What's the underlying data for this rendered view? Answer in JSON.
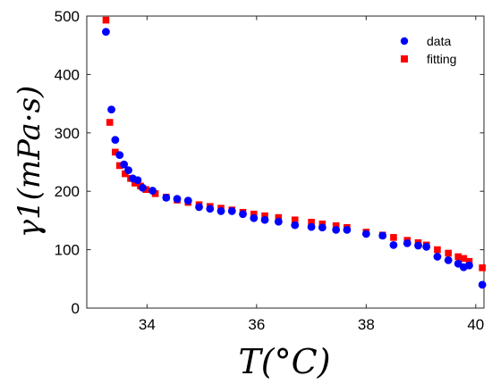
{
  "chart_data": {
    "type": "scatter",
    "xlabel": "T(°C)",
    "ylabel": "γ1(mPa·s)",
    "xlim": [
      32.9,
      40.15
    ],
    "ylim": [
      0,
      500
    ],
    "grid": false,
    "legend_position": "top-right",
    "x_ticks": [
      34,
      36,
      38,
      40
    ],
    "y_ticks": [
      0,
      100,
      200,
      300,
      400,
      500
    ],
    "series": [
      {
        "name": "data",
        "marker": "circle",
        "color": "#0000ff",
        "points": [
          [
            33.25,
            473
          ],
          [
            33.35,
            340
          ],
          [
            33.42,
            288
          ],
          [
            33.5,
            262
          ],
          [
            33.58,
            246
          ],
          [
            33.66,
            236
          ],
          [
            33.74,
            222
          ],
          [
            33.83,
            219
          ],
          [
            33.92,
            206
          ],
          [
            34.1,
            201
          ],
          [
            34.35,
            189
          ],
          [
            34.55,
            187
          ],
          [
            34.75,
            184
          ],
          [
            34.95,
            173
          ],
          [
            35.15,
            170
          ],
          [
            35.35,
            166
          ],
          [
            35.55,
            166
          ],
          [
            35.75,
            161
          ],
          [
            35.95,
            154
          ],
          [
            36.15,
            151
          ],
          [
            36.4,
            148
          ],
          [
            36.7,
            142
          ],
          [
            37.0,
            139
          ],
          [
            37.2,
            138
          ],
          [
            37.45,
            134
          ],
          [
            37.65,
            134
          ],
          [
            38.0,
            127
          ],
          [
            38.3,
            124
          ],
          [
            38.5,
            108
          ],
          [
            38.75,
            111
          ],
          [
            38.95,
            107
          ],
          [
            39.1,
            105
          ],
          [
            39.3,
            88
          ],
          [
            39.5,
            82
          ],
          [
            39.68,
            76
          ],
          [
            39.78,
            70
          ],
          [
            39.88,
            73
          ],
          [
            40.12,
            40
          ]
        ]
      },
      {
        "name": "fitting",
        "marker": "square",
        "color": "#ff0000",
        "points": [
          [
            33.25,
            493
          ],
          [
            33.32,
            318
          ],
          [
            33.42,
            267
          ],
          [
            33.5,
            244
          ],
          [
            33.6,
            230
          ],
          [
            33.7,
            222
          ],
          [
            33.78,
            214
          ],
          [
            33.88,
            209
          ],
          [
            33.98,
            203
          ],
          [
            34.15,
            196
          ],
          [
            34.35,
            190
          ],
          [
            34.55,
            185
          ],
          [
            34.75,
            181
          ],
          [
            34.95,
            177
          ],
          [
            35.15,
            174
          ],
          [
            35.35,
            171
          ],
          [
            35.55,
            168
          ],
          [
            35.75,
            164
          ],
          [
            35.95,
            161
          ],
          [
            36.15,
            158
          ],
          [
            36.4,
            155
          ],
          [
            36.7,
            151
          ],
          [
            37.0,
            147
          ],
          [
            37.2,
            144
          ],
          [
            37.45,
            141
          ],
          [
            37.65,
            138
          ],
          [
            38.0,
            130
          ],
          [
            38.3,
            125
          ],
          [
            38.5,
            121
          ],
          [
            38.75,
            116
          ],
          [
            38.95,
            112
          ],
          [
            39.1,
            108
          ],
          [
            39.3,
            100
          ],
          [
            39.5,
            94
          ],
          [
            39.68,
            88
          ],
          [
            39.78,
            85
          ],
          [
            39.88,
            80
          ],
          [
            40.12,
            69
          ]
        ]
      }
    ]
  }
}
